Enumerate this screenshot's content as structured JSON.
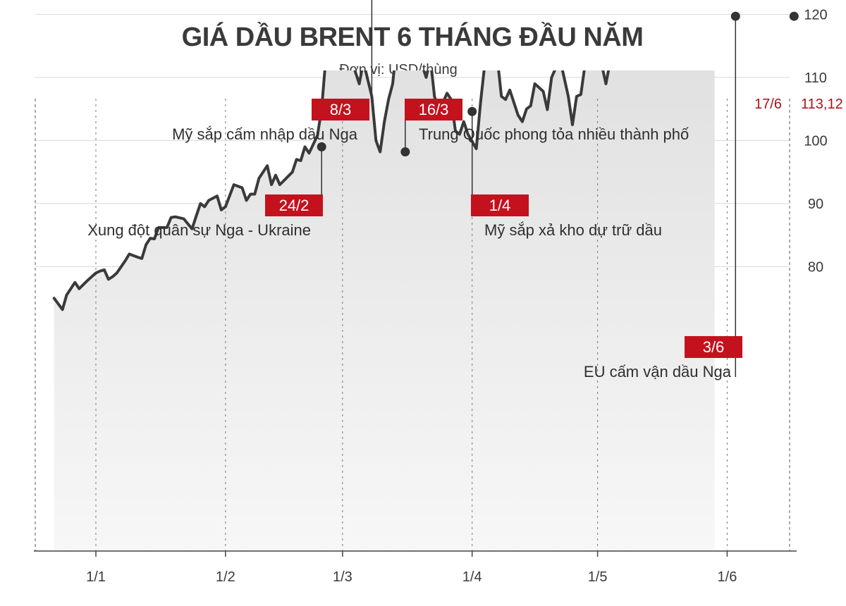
{
  "chart_data": {
    "type": "area",
    "title": "GIÁ DẦU BRENT 6 THÁNG ĐẦU NĂM",
    "subtitle": "Đơn vị: USD/thùng",
    "x_tick_labels": [
      "1/1",
      "1/2",
      "1/3",
      "1/4",
      "1/5",
      "1/6"
    ],
    "y_ticks": [
      80,
      90,
      100,
      110,
      120
    ],
    "ylim": [
      66,
      138
    ],
    "grid": "horizontal",
    "colors": {
      "line": "#3a3a3a",
      "fill_top": "#dcdcdc",
      "fill_bottom": "#f7f7f7",
      "badge": "#c3121d",
      "grid": "#d8d8d8",
      "highlight_text": "#b0101a"
    },
    "series": [
      {
        "points": [
          [
            -10,
            75.0
          ],
          [
            -8,
            73.2
          ],
          [
            -7,
            75.5
          ],
          [
            -5,
            77.5
          ],
          [
            -4,
            76.5
          ],
          [
            -2,
            77.8
          ],
          [
            0,
            79.0
          ],
          [
            1,
            79.3
          ],
          [
            2,
            79.5
          ],
          [
            3,
            78.0
          ],
          [
            4,
            78.4
          ],
          [
            5,
            79.0
          ],
          [
            7,
            80.9
          ],
          [
            8,
            82.0
          ],
          [
            10,
            81.5
          ],
          [
            11,
            81.3
          ],
          [
            12,
            83.5
          ],
          [
            13,
            84.5
          ],
          [
            14,
            84.4
          ],
          [
            15,
            86.2
          ],
          [
            16,
            86.2
          ],
          [
            17,
            86.2
          ],
          [
            18,
            87.8
          ],
          [
            19,
            87.9
          ],
          [
            21,
            87.6
          ],
          [
            23,
            86.0
          ],
          [
            24,
            88.0
          ],
          [
            25,
            90.0
          ],
          [
            26,
            89.5
          ],
          [
            27,
            90.5
          ],
          [
            29,
            91.2
          ],
          [
            30,
            89.0
          ],
          [
            31,
            89.5
          ],
          [
            33,
            93.0
          ],
          [
            35,
            92.5
          ],
          [
            36,
            90.5
          ],
          [
            37,
            91.5
          ],
          [
            38,
            91.5
          ],
          [
            39,
            94.0
          ],
          [
            41,
            96.0
          ],
          [
            42,
            93.0
          ],
          [
            43,
            94.5
          ],
          [
            44,
            93.0
          ],
          [
            47,
            95.0
          ],
          [
            48,
            97.0
          ],
          [
            49,
            96.8
          ],
          [
            50,
            99.0
          ],
          [
            51,
            98.0
          ],
          [
            53,
            100.8
          ],
          [
            54,
            105.0
          ],
          [
            55,
            113.0
          ],
          [
            56,
            111.5
          ],
          [
            57,
            118.0
          ],
          [
            59,
            123.0
          ],
          [
            60,
            124.0
          ],
          [
            61,
            127.8
          ],
          [
            62,
            111.0
          ],
          [
            63,
            109.0
          ],
          [
            64,
            112.5
          ],
          [
            66,
            107.0
          ],
          [
            67,
            100.0
          ],
          [
            68,
            98.2
          ],
          [
            69,
            103.0
          ],
          [
            70,
            106.5
          ],
          [
            71,
            109.0
          ],
          [
            72,
            115.5
          ],
          [
            73,
            115.0
          ],
          [
            74,
            121.7
          ],
          [
            75,
            118.5
          ],
          [
            76,
            120.5
          ],
          [
            78,
            112.0
          ],
          [
            79,
            110.0
          ],
          [
            80,
            113.0
          ],
          [
            81,
            107.0
          ],
          [
            82,
            104.6
          ],
          [
            83,
            106.0
          ],
          [
            84,
            107.5
          ],
          [
            85,
            106.5
          ],
          [
            86,
            101.5
          ],
          [
            87,
            101.0
          ],
          [
            88,
            103.0
          ],
          [
            89,
            101.0
          ],
          [
            91,
            98.7
          ],
          [
            92,
            106.0
          ],
          [
            93,
            112.0
          ],
          [
            94,
            112.5
          ],
          [
            96,
            113.2
          ],
          [
            97,
            107.0
          ],
          [
            98,
            106.5
          ],
          [
            99,
            108.0
          ],
          [
            101,
            104.0
          ],
          [
            102,
            103.0
          ],
          [
            103,
            105.0
          ],
          [
            104,
            105.5
          ],
          [
            105,
            109.0
          ],
          [
            107,
            107.8
          ],
          [
            108,
            104.9
          ],
          [
            109,
            110.0
          ],
          [
            111,
            113.0
          ],
          [
            113,
            107.0
          ],
          [
            114,
            102.5
          ],
          [
            115,
            107.0
          ],
          [
            116,
            107.3
          ],
          [
            117,
            112.0
          ],
          [
            118,
            112.5
          ],
          [
            120,
            114.5
          ],
          [
            121,
            112.0
          ],
          [
            122,
            109.0
          ],
          [
            123,
            112.5
          ],
          [
            124,
            112.8
          ],
          [
            127,
            113.5
          ],
          [
            128,
            113.5
          ],
          [
            129,
            118.0
          ],
          [
            130,
            119.8
          ],
          [
            133,
            123.0
          ],
          [
            134,
            116.5
          ],
          [
            135,
            118.0
          ],
          [
            136,
            120.0
          ],
          [
            137,
            119.8
          ],
          [
            138,
            120.0
          ],
          [
            139,
            120.5
          ],
          [
            140,
            123.7
          ],
          [
            141,
            123.3
          ],
          [
            142,
            122.0
          ],
          [
            143,
            122.2
          ],
          [
            144,
            122.4
          ],
          [
            145,
            121.0
          ],
          [
            146,
            118.5
          ],
          [
            147,
            119.5
          ],
          [
            148,
            119.7
          ]
        ]
      }
    ],
    "annotations": [
      {
        "date": "24/2",
        "x": 54,
        "y": 99.0,
        "text": "Xung đột quân sự Nga - Ukraine",
        "side": "left"
      },
      {
        "date": "8/3",
        "x": 66,
        "y": 124.0,
        "text": "Mỹ sắp cấm nhập dầu Nga",
        "side": "left"
      },
      {
        "date": "16/3",
        "x": 74,
        "y": 98.2,
        "text": "Trung Quốc phong tỏa nhiều thành phố",
        "side": "right"
      },
      {
        "date": "1/4",
        "x": 90,
        "y": 104.6,
        "text": "Mỹ sắp xả kho dự trữ dầu",
        "side": "right"
      },
      {
        "date": "3/6",
        "x": 153,
        "y": 119.7,
        "text": "EU cấm vận dầu Nga",
        "side": "left"
      }
    ],
    "last_point": {
      "date": "17/6",
      "value": "113,12",
      "x": 167,
      "y": 119.7
    }
  }
}
